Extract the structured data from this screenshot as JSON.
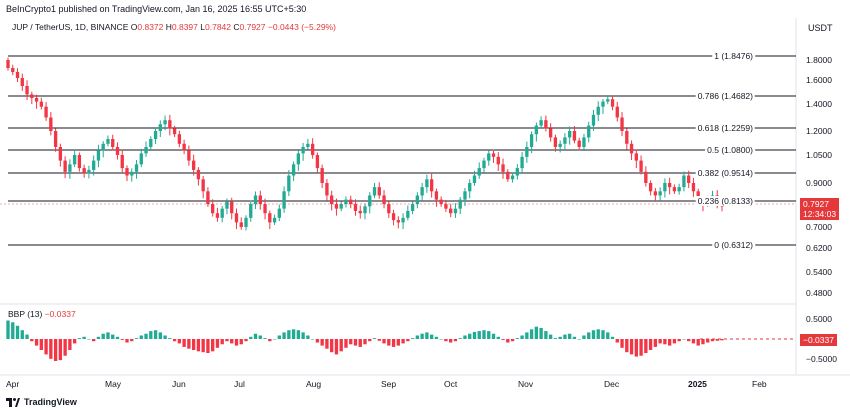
{
  "header": {
    "text": "BeInCrypto1 published on TradingView.com, Jan 16, 2025 16:55 UTC+5:30",
    "currency": "USDT"
  },
  "legend": {
    "symbol": "JUP / TetherUS, 1D, BINANCE",
    "o_label": "O",
    "o_value": "0.8372",
    "h_label": "H",
    "h_value": "0.8397",
    "l_label": "L",
    "l_value": "0.7842",
    "c_label": "C",
    "c_value": "0.7927",
    "change": "−0.0443 (−5.29%)"
  },
  "indicator": {
    "name": "BBP (13)",
    "value": "−0.0337"
  },
  "price_tag": {
    "value": "0.7927",
    "countdown": "12:34:03"
  },
  "bbp_tag": "−0.0337",
  "footer": {
    "logo_text": "TradingView"
  },
  "colors": {
    "up": "#22ab94",
    "down": "#f23645",
    "fib_line": "#131722"
  },
  "chart_data": {
    "type": "candlestick",
    "price_axis_ticks": [
      "1.8000",
      "1.6000",
      "1.4000",
      "1.2000",
      "1.0500",
      "0.9000",
      "0.7000",
      "0.6200",
      "0.5400",
      "0.4800"
    ],
    "bbp_axis_ticks": [
      "0.5000",
      "−0.5000"
    ],
    "x_ticks": [
      "Apr",
      "May",
      "Jun",
      "Jul",
      "Aug",
      "Sep",
      "Oct",
      "Nov",
      "Dec",
      "2025",
      "Feb"
    ],
    "fib_levels": [
      {
        "label": "1 (1.8476)",
        "value": 1.8476
      },
      {
        "label": "0.786 (1.4682)",
        "value": 1.4682
      },
      {
        "label": "0.618 (1.2259)",
        "value": 1.2259
      },
      {
        "label": "0.5 (1.0800)",
        "value": 1.08
      },
      {
        "label": "0.382 (0.9514)",
        "value": 0.9514
      },
      {
        "label": "0.236 (0.8133)",
        "value": 0.8133
      },
      {
        "label": "0 (0.6312)",
        "value": 0.6312
      }
    ],
    "approx_closes": [
      1.72,
      1.68,
      1.62,
      1.55,
      1.48,
      1.45,
      1.42,
      1.38,
      1.3,
      1.2,
      1.1,
      1.02,
      0.96,
      1.0,
      1.05,
      0.98,
      0.95,
      0.97,
      1.02,
      1.08,
      1.12,
      1.15,
      1.1,
      1.05,
      0.98,
      0.94,
      0.96,
      1.0,
      1.06,
      1.1,
      1.15,
      1.2,
      1.25,
      1.28,
      1.22,
      1.18,
      1.12,
      1.08,
      1.02,
      0.97,
      0.92,
      0.86,
      0.8,
      0.76,
      0.74,
      0.78,
      0.81,
      0.76,
      0.72,
      0.7,
      0.74,
      0.8,
      0.84,
      0.8,
      0.76,
      0.72,
      0.74,
      0.78,
      0.86,
      0.94,
      1.0,
      1.06,
      1.1,
      1.12,
      1.05,
      0.98,
      0.9,
      0.84,
      0.8,
      0.78,
      0.8,
      0.82,
      0.8,
      0.77,
      0.76,
      0.79,
      0.84,
      0.88,
      0.84,
      0.8,
      0.76,
      0.73,
      0.72,
      0.74,
      0.77,
      0.8,
      0.84,
      0.88,
      0.92,
      0.86,
      0.82,
      0.8,
      0.78,
      0.76,
      0.78,
      0.82,
      0.86,
      0.9,
      0.94,
      0.98,
      1.02,
      1.06,
      1.04,
      1.0,
      0.96,
      0.92,
      0.94,
      0.98,
      1.04,
      1.1,
      1.18,
      1.24,
      1.28,
      1.22,
      1.16,
      1.1,
      1.12,
      1.16,
      1.2,
      1.14,
      1.1,
      1.16,
      1.24,
      1.32,
      1.38,
      1.42,
      1.44,
      1.38,
      1.3,
      1.2,
      1.12,
      1.06,
      1.02,
      0.96,
      0.9,
      0.86,
      0.84,
      0.86,
      0.9,
      0.88,
      0.86,
      0.88,
      0.94,
      0.9,
      0.86,
      0.82,
      0.8,
      0.82,
      0.84,
      0.8,
      0.79
    ],
    "approx_bbp": [
      0.42,
      0.38,
      0.3,
      0.2,
      0.1,
      -0.05,
      -0.15,
      -0.25,
      -0.35,
      -0.45,
      -0.5,
      -0.48,
      -0.38,
      -0.25,
      -0.1,
      0.02,
      0.05,
      0.0,
      -0.05,
      0.05,
      0.12,
      0.15,
      0.1,
      0.05,
      -0.02,
      -0.08,
      -0.05,
      0.02,
      0.08,
      0.12,
      0.18,
      0.2,
      0.15,
      0.08,
      0.02,
      -0.05,
      -0.1,
      -0.18,
      -0.22,
      -0.25,
      -0.28,
      -0.3,
      -0.32,
      -0.28,
      -0.2,
      -0.12,
      -0.05,
      -0.1,
      -0.15,
      -0.12,
      -0.05,
      0.05,
      0.12,
      0.08,
      0.02,
      -0.05,
      0.0,
      0.08,
      0.15,
      0.2,
      0.22,
      0.2,
      0.15,
      0.08,
      0.0,
      -0.08,
      -0.15,
      -0.22,
      -0.3,
      -0.35,
      -0.28,
      -0.2,
      -0.12,
      -0.15,
      -0.18,
      -0.12,
      -0.05,
      0.02,
      -0.04,
      -0.1,
      -0.15,
      -0.18,
      -0.15,
      -0.1,
      -0.05,
      0.02,
      0.08,
      0.12,
      0.15,
      0.1,
      0.05,
      0.0,
      -0.05,
      -0.08,
      -0.05,
      0.02,
      0.08,
      0.12,
      0.16,
      0.18,
      0.2,
      0.18,
      0.12,
      0.05,
      -0.02,
      -0.08,
      -0.05,
      0.02,
      0.08,
      0.15,
      0.22,
      0.28,
      0.25,
      0.18,
      0.1,
      0.02,
      0.05,
      0.1,
      0.12,
      0.05,
      0.0,
      0.08,
      0.15,
      0.2,
      0.22,
      0.2,
      0.15,
      0.05,
      -0.08,
      -0.2,
      -0.3,
      -0.35,
      -0.4,
      -0.38,
      -0.32,
      -0.25,
      -0.18,
      -0.1,
      -0.12,
      -0.15,
      -0.1,
      -0.05,
      0.0,
      -0.05,
      -0.1,
      -0.15,
      -0.12,
      -0.08,
      -0.05,
      -0.04,
      -0.03
    ]
  }
}
